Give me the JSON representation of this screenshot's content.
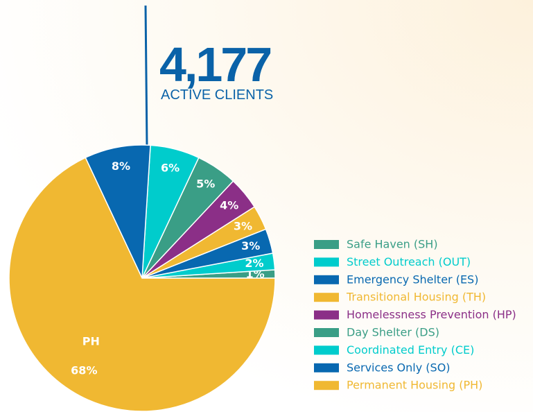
{
  "headline": {
    "value": "4,177",
    "label": "ACTIVE CLIENTS"
  },
  "chart_data": {
    "type": "pie",
    "categories": [
      "Safe Haven (SH)",
      "Street Outreach (OUT)",
      "Emergency Shelter (ES)",
      "Transitional Housing (TH)",
      "Homelessness Prevention (HP)",
      "Day Shelter (DS)",
      "Coordinated Entry (CE)",
      "Services Only (SO)",
      "Permanent Housing (PH)"
    ],
    "values": [
      1,
      2,
      3,
      3,
      4,
      5,
      6,
      8,
      68
    ],
    "value_labels": [
      "1%",
      "2%",
      "3%",
      "3%",
      "4%",
      "5%",
      "6%",
      "8%",
      "68%"
    ],
    "colors": [
      "#3a9e86",
      "#00cccc",
      "#0868b0",
      "#f0b832",
      "#8b2f87",
      "#3a9e86",
      "#00cccc",
      "#0868b0",
      "#f0b832"
    ],
    "slice_label": "PH",
    "legend": "right"
  }
}
